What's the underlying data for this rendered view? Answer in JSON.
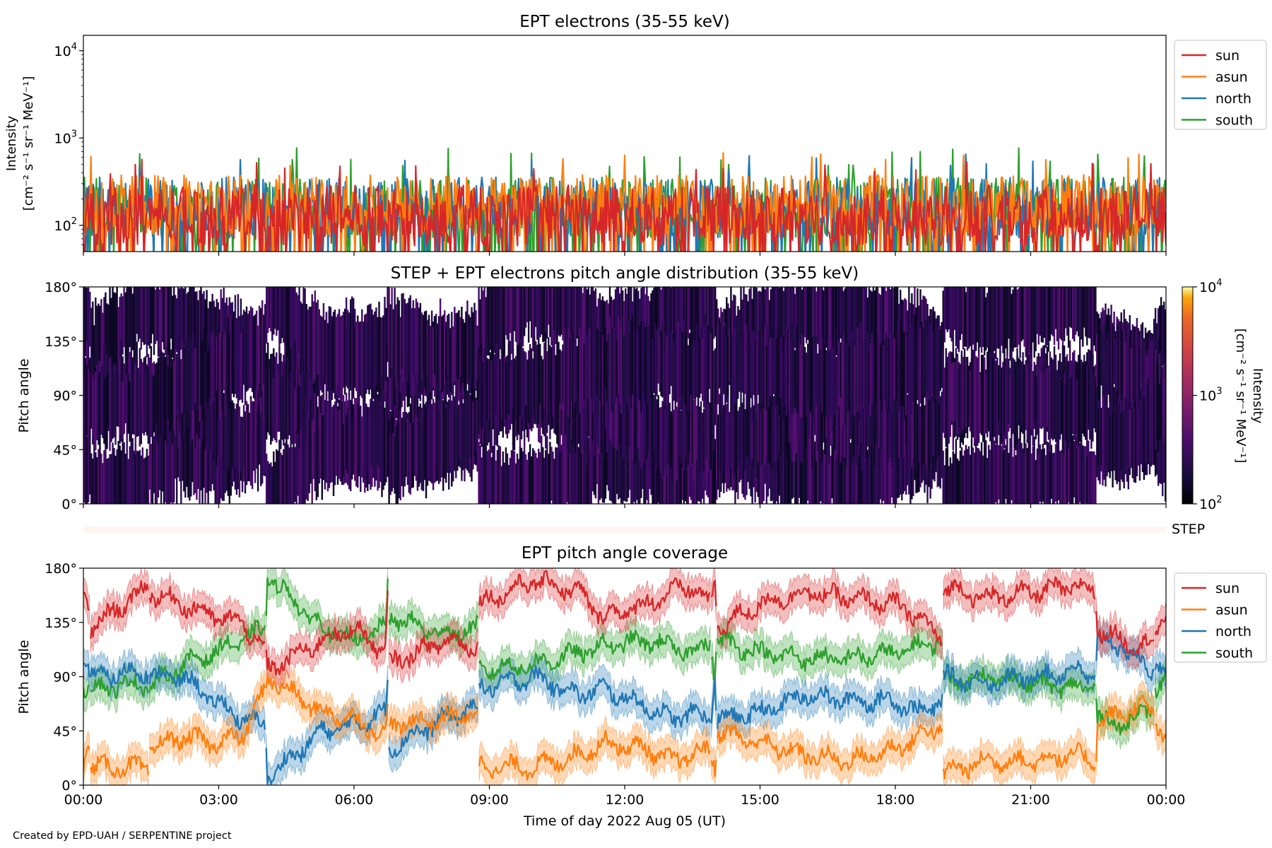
{
  "colors": {
    "sun": "#d62728",
    "asun": "#ff7f0e",
    "north": "#1f77b4",
    "south": "#2ca02c",
    "step_band": "#fff5f0"
  },
  "legend_labels": [
    "sun",
    "asun",
    "north",
    "south"
  ],
  "footer": {
    "credit": "Created by EPD-UAH / SERPENTINE project"
  },
  "chart_data": [
    {
      "type": "line",
      "title": "EPT electrons (35-55 keV)",
      "ylabel_line1": "Intensity",
      "ylabel_line2": "[cm⁻² s⁻¹ sr⁻¹ MeV⁻¹]",
      "y_scale": "log",
      "ylim": [
        50,
        15000
      ],
      "y_ticks": [
        {
          "value": 100,
          "base": "10",
          "exp": "2"
        },
        {
          "value": 1000,
          "base": "10",
          "exp": "3"
        },
        {
          "value": 10000,
          "base": "10",
          "exp": "4"
        }
      ],
      "x_range_hours": [
        0,
        24
      ],
      "legend": "outside-right",
      "series": [
        {
          "name": "sun",
          "approx_range": [
            50,
            600
          ],
          "typical": 130
        },
        {
          "name": "asun",
          "approx_range": [
            50,
            680
          ],
          "typical": 170
        },
        {
          "name": "north",
          "approx_range": [
            50,
            700
          ],
          "typical": 160
        },
        {
          "name": "south",
          "approx_range": [
            50,
            780
          ],
          "typical": 160
        }
      ]
    },
    {
      "type": "heatmap",
      "title": "STEP + EPT electrons pitch angle distribution (35-55 keV)",
      "ylabel": "Pitch angle",
      "ylim": [
        0,
        180
      ],
      "y_ticks": [
        "0°",
        "45°",
        "90°",
        "135°",
        "180°"
      ],
      "x_range_hours": [
        0,
        24
      ],
      "colorbar": {
        "scale": "log",
        "range": [
          100,
          10000
        ],
        "ticks": [
          {
            "value": 100,
            "base": "10",
            "exp": "2"
          },
          {
            "value": 1000,
            "base": "10",
            "exp": "3"
          },
          {
            "value": 10000,
            "base": "10",
            "exp": "4"
          }
        ],
        "label_line1": "Intensity",
        "label_line2": "[cm⁻² s⁻¹ sr⁻¹ MeV⁻¹]"
      }
    },
    {
      "type": "band",
      "label": "STEP"
    },
    {
      "type": "line",
      "title": "EPT pitch angle coverage",
      "ylabel": "Pitch angle",
      "ylim": [
        0,
        180
      ],
      "y_ticks": [
        "0°",
        "45°",
        "90°",
        "135°",
        "180°"
      ],
      "xlabel": "Time of day 2022 Aug 05 (UT)",
      "x_ticks": [
        "00:00",
        "03:00",
        "06:00",
        "09:00",
        "12:00",
        "15:00",
        "18:00",
        "21:00",
        "00:00"
      ],
      "legend": "outside-right",
      "band_halfwidth_deg": 12,
      "segment_breaks_hours": [
        0.15,
        1.45,
        4.05,
        6.75,
        8.75,
        13.9,
        14.05,
        19.05,
        22.45,
        23.75
      ],
      "series": [
        {
          "name": "sun",
          "x": [
            0,
            0.15,
            0.16,
            1.45,
            1.46,
            2.2,
            2.9,
            3.5,
            4.05,
            4.06,
            5.3,
            6.0,
            6.7,
            6.75,
            6.76,
            8.0,
            8.75,
            8.76,
            10.0,
            11.0,
            11.5,
            12.5,
            13.0,
            13.5,
            13.9,
            14.0,
            14.05,
            14.06,
            15.0,
            16.0,
            17.0,
            18.0,
            18.5,
            19.05,
            19.06,
            20.0,
            21.0,
            22.0,
            22.45,
            22.46,
            23.0,
            23.5,
            23.75,
            23.76,
            24.0
          ],
          "y": [
            160,
            150,
            130,
            165,
            160,
            150,
            140,
            135,
            110,
            95,
            120,
            130,
            110,
            160,
            100,
            120,
            115,
            150,
            170,
            160,
            140,
            150,
            160,
            165,
            150,
            170,
            135,
            130,
            150,
            160,
            155,
            150,
            140,
            120,
            165,
            155,
            160,
            165,
            160,
            130,
            120,
            115,
            120,
            125,
            145
          ]
        },
        {
          "name": "asun",
          "x": [
            0,
            0.15,
            0.16,
            1.45,
            1.46,
            2.2,
            2.9,
            3.5,
            4.05,
            4.06,
            5.3,
            6.0,
            6.7,
            6.75,
            6.76,
            8.0,
            8.75,
            8.76,
            10.0,
            11.0,
            11.5,
            12.5,
            13.0,
            13.5,
            13.9,
            14.0,
            14.05,
            14.06,
            15.0,
            16.0,
            17.0,
            18.0,
            18.5,
            19.05,
            19.06,
            20.0,
            21.0,
            22.0,
            22.45,
            22.46,
            23.0,
            23.5,
            23.75,
            23.76,
            24.0
          ],
          "y": [
            20,
            40,
            15,
            15,
            30,
            40,
            35,
            40,
            80,
            90,
            60,
            55,
            40,
            60,
            50,
            55,
            60,
            15,
            15,
            25,
            35,
            30,
            20,
            25,
            30,
            15,
            40,
            45,
            35,
            25,
            20,
            30,
            40,
            50,
            10,
            20,
            20,
            25,
            20,
            50,
            60,
            65,
            60,
            55,
            35
          ]
        },
        {
          "name": "north",
          "x": [
            0,
            0.15,
            0.16,
            1.45,
            1.46,
            2.2,
            2.9,
            3.5,
            4.05,
            4.06,
            5.3,
            6.0,
            6.7,
            6.75,
            6.76,
            8.0,
            8.75,
            8.76,
            10.0,
            11.0,
            11.5,
            12.5,
            13.0,
            13.5,
            13.9,
            14.0,
            14.05,
            14.06,
            15.0,
            16.0,
            17.0,
            18.0,
            18.5,
            19.05,
            19.06,
            20.0,
            21.0,
            22.0,
            22.45,
            22.46,
            23.0,
            23.5,
            23.75,
            23.76,
            24.0
          ],
          "y": [
            100,
            95,
            90,
            95,
            90,
            90,
            70,
            55,
            50,
            5,
            45,
            50,
            60,
            90,
            30,
            55,
            65,
            80,
            90,
            75,
            80,
            65,
            55,
            60,
            55,
            90,
            40,
            55,
            60,
            75,
            70,
            70,
            60,
            70,
            90,
            85,
            90,
            95,
            90,
            120,
            115,
            100,
            95,
            100,
            95
          ]
        },
        {
          "name": "south",
          "x": [
            0,
            0.15,
            0.16,
            1.45,
            1.46,
            2.2,
            2.9,
            3.5,
            4.05,
            4.06,
            5.3,
            6.0,
            6.7,
            6.75,
            6.76,
            8.0,
            8.75,
            8.76,
            10.0,
            11.0,
            11.5,
            12.5,
            13.0,
            13.5,
            13.9,
            14.0,
            14.05,
            14.06,
            15.0,
            16.0,
            17.0,
            18.0,
            18.5,
            19.05,
            19.06,
            20.0,
            21.0,
            22.0,
            22.45,
            22.46,
            23.0,
            23.5,
            23.75,
            23.76,
            24.0
          ],
          "y": [
            80,
            85,
            80,
            85,
            80,
            100,
            110,
            120,
            130,
            175,
            130,
            120,
            130,
            170,
            140,
            125,
            130,
            95,
            100,
            110,
            115,
            120,
            115,
            110,
            120,
            90,
            125,
            120,
            110,
            105,
            105,
            110,
            115,
            120,
            85,
            90,
            85,
            80,
            85,
            55,
            50,
            60,
            70,
            80,
            85
          ]
        }
      ]
    }
  ]
}
